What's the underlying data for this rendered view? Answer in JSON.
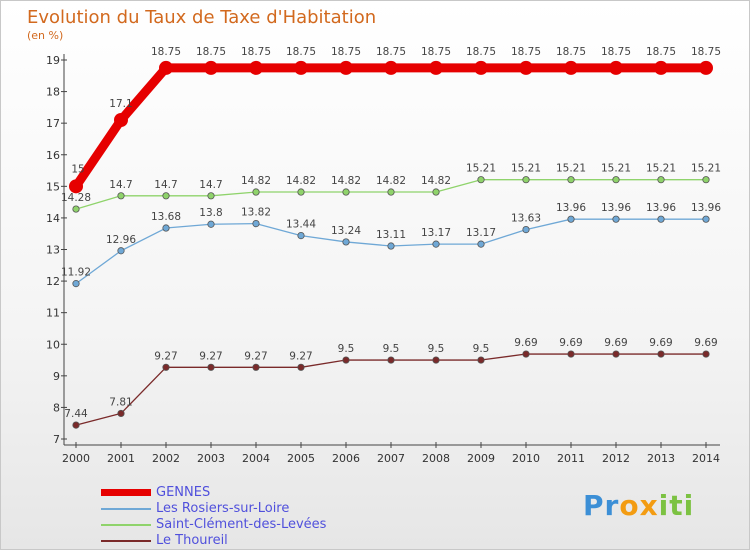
{
  "chart_data": {
    "type": "line",
    "title": "Evolution du Taux de Taxe d'Habitation",
    "ylabel": "(en %)",
    "xlabel": "",
    "x": [
      "2000",
      "2001",
      "2002",
      "2003",
      "2004",
      "2005",
      "2006",
      "2007",
      "2008",
      "2009",
      "2010",
      "2011",
      "2012",
      "2013",
      "2014"
    ],
    "ylim": [
      7,
      19
    ],
    "yticks": [
      "7",
      "8",
      "9",
      "10",
      "11",
      "12",
      "13",
      "14",
      "15",
      "16",
      "17",
      "18",
      "19"
    ],
    "grid": false,
    "legend_position": "bottom-left",
    "series": [
      {
        "name": "GENNES",
        "color": "#e60000",
        "values": [
          15,
          17.1,
          18.75,
          18.75,
          18.75,
          18.75,
          18.75,
          18.75,
          18.75,
          18.75,
          18.75,
          18.75,
          18.75,
          18.75,
          18.75
        ],
        "labels": [
          "15",
          "17.1",
          "18.75",
          "18.75",
          "18.75",
          "18.75",
          "18.75",
          "18.75",
          "18.75",
          "18.75",
          "18.75",
          "18.75",
          "18.75",
          "18.75",
          "18.75"
        ]
      },
      {
        "name": "Les Rosiers-sur-Loire",
        "color": "#6fa8d6",
        "values": [
          11.92,
          12.96,
          13.68,
          13.8,
          13.82,
          13.44,
          13.24,
          13.11,
          13.17,
          13.17,
          13.63,
          13.96,
          13.96,
          13.96,
          13.96
        ],
        "labels": [
          "11.92",
          "12.96",
          "13.68",
          "13.8",
          "13.82",
          "13.44",
          "13.24",
          "13.11",
          "13.17",
          "13.17",
          "13.63",
          "13.96",
          "13.96",
          "13.96",
          "13.96"
        ]
      },
      {
        "name": "Saint-Clément-des-Levées",
        "color": "#8fd36b",
        "values": [
          14.28,
          14.7,
          14.7,
          14.7,
          14.82,
          14.82,
          14.82,
          14.82,
          14.82,
          15.21,
          15.21,
          15.21,
          15.21,
          15.21,
          15.21
        ],
        "labels": [
          "14.28",
          "14.7",
          "14.7",
          "14.7",
          "14.82",
          "14.82",
          "14.82",
          "14.82",
          "14.82",
          "15.21",
          "15.21",
          "15.21",
          "15.21",
          "15.21",
          "15.21"
        ]
      },
      {
        "name": "Le Thoureil",
        "color": "#7a2a2a",
        "values": [
          7.44,
          7.81,
          9.27,
          9.27,
          9.27,
          9.27,
          9.5,
          9.5,
          9.5,
          9.5,
          9.69,
          9.69,
          9.69,
          9.69,
          9.69
        ],
        "labels": [
          "7.44",
          "7.81",
          "9.27",
          "9.27",
          "9.27",
          "9.27",
          "9.5",
          "9.5",
          "9.5",
          "9.5",
          "9.69",
          "9.69",
          "9.69",
          "9.69",
          "9.69"
        ]
      }
    ]
  },
  "logo": {
    "p1": "Pr",
    "p2": "ox",
    "p3": "iti"
  }
}
